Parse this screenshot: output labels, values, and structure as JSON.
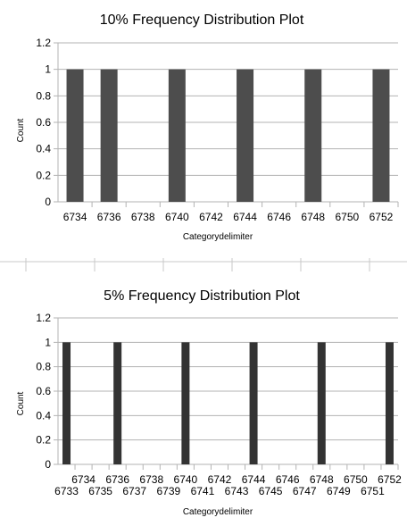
{
  "chart_data": [
    {
      "type": "bar",
      "title": "10% Frequency Distribution Plot",
      "xlabel": "Categorydelimiter",
      "ylabel": "Count",
      "ylim": [
        0,
        1.2
      ],
      "yticks": [
        "0",
        "0.2",
        "0.4",
        "0.6",
        "0.8",
        "1",
        "1.2"
      ],
      "categories": [
        "6734",
        "6736",
        "6738",
        "6740",
        "6742",
        "6744",
        "6746",
        "6748",
        "6750",
        "6752"
      ],
      "values": [
        1,
        1,
        0,
        1,
        0,
        1,
        0,
        1,
        0,
        1
      ],
      "bar_color": "#4d4d4d",
      "grid": true
    },
    {
      "type": "bar",
      "title": "5% Frequency Distribution Plot",
      "xlabel": "Categorydelimiter",
      "ylabel": "Count",
      "ylim": [
        0,
        1.2
      ],
      "yticks": [
        "0",
        "0.2",
        "0.4",
        "0.6",
        "0.8",
        "1",
        "1.2"
      ],
      "categories": [
        "6733",
        "6734",
        "6735",
        "6736",
        "6737",
        "6738",
        "6739",
        "6740",
        "6741",
        "6742",
        "6743",
        "6744",
        "6745",
        "6746",
        "6747",
        "6748",
        "6749",
        "6750",
        "6751",
        "6752"
      ],
      "values": [
        1,
        0,
        0,
        1,
        0,
        0,
        0,
        1,
        0,
        0,
        0,
        1,
        0,
        0,
        0,
        1,
        0,
        0,
        0,
        1
      ],
      "bar_color": "#333333",
      "grid": true
    }
  ]
}
